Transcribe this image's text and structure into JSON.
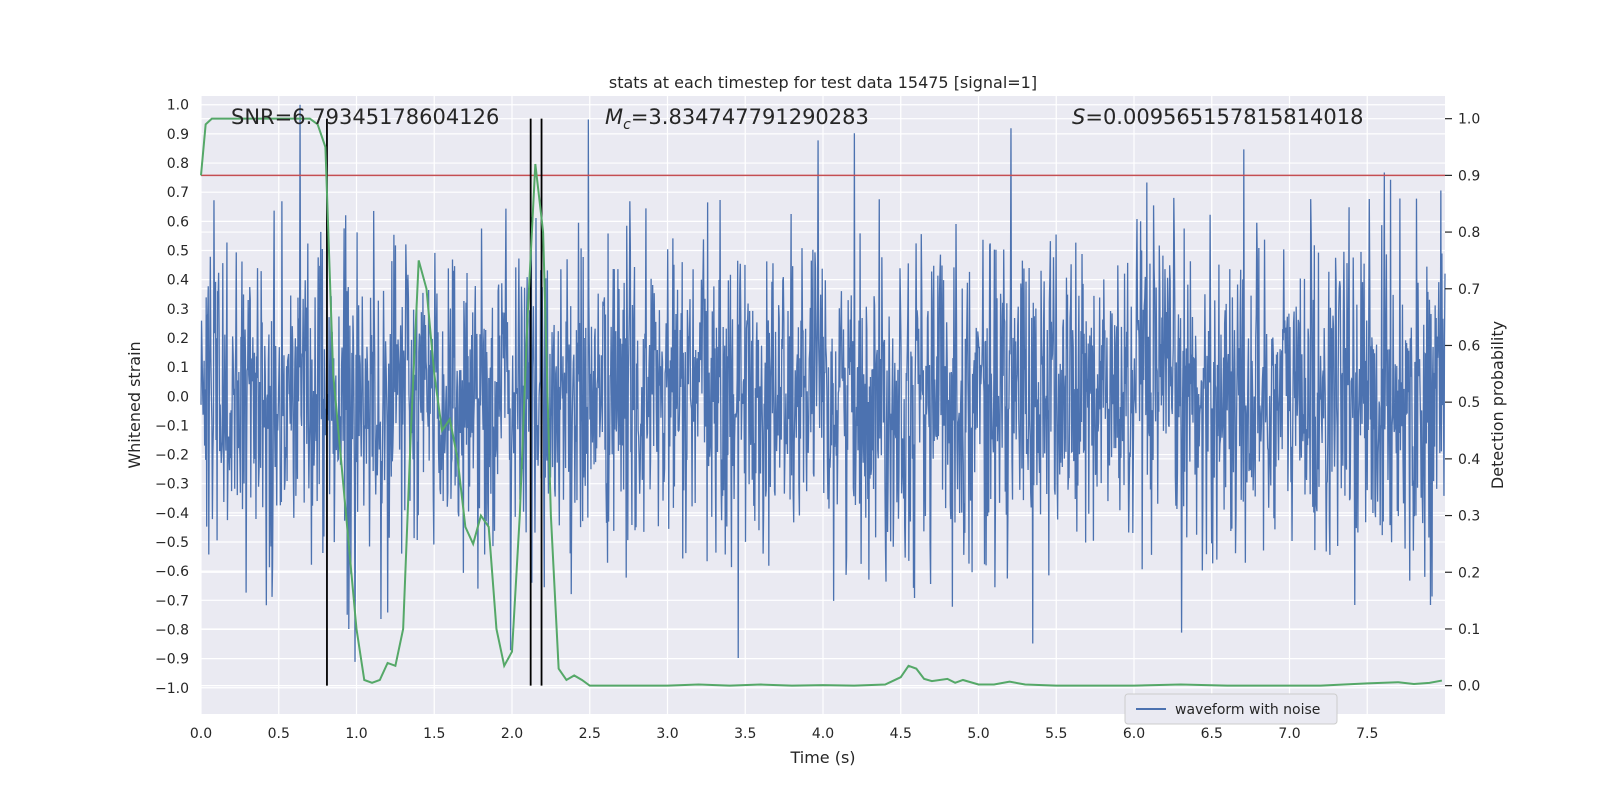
{
  "chart_data": {
    "type": "line",
    "title": "stats at each timestep for test data 15475 [signal=1]",
    "xlabel": "Time (s)",
    "ylabel_left": "Whitened strain",
    "ylabel_right": "Detection probability",
    "xlim": [
      0.0,
      8.0
    ],
    "ylim_left": [
      -1.09,
      1.03
    ],
    "ylim_right": [
      -0.05,
      1.04
    ],
    "x_ticks": [
      "0.0",
      "0.5",
      "1.0",
      "1.5",
      "2.0",
      "2.5",
      "3.0",
      "3.5",
      "4.0",
      "4.5",
      "5.0",
      "5.5",
      "6.0",
      "6.5",
      "7.0",
      "7.5"
    ],
    "x_tick_values": [
      0.0,
      0.5,
      1.0,
      1.5,
      2.0,
      2.5,
      3.0,
      3.5,
      4.0,
      4.5,
      5.0,
      5.5,
      6.0,
      6.5,
      7.0,
      7.5
    ],
    "y_left_ticks": [
      "1.0",
      "0.9",
      "0.8",
      "0.7",
      "0.6",
      "0.5",
      "0.4",
      "0.3",
      "0.2",
      "0.1",
      "0.0",
      "−0.1",
      "−0.2",
      "−0.3",
      "−0.4",
      "−0.5",
      "−0.6",
      "−0.7",
      "−0.8",
      "−0.9",
      "−1.0"
    ],
    "y_left_tick_values": [
      1.0,
      0.9,
      0.8,
      0.7,
      0.6,
      0.5,
      0.4,
      0.3,
      0.2,
      0.1,
      0.0,
      -0.1,
      -0.2,
      -0.3,
      -0.4,
      -0.5,
      -0.6,
      -0.7,
      -0.8,
      -0.9,
      -1.0
    ],
    "y_right_ticks": [
      "1.0",
      "0.9",
      "0.8",
      "0.7",
      "0.6",
      "0.5",
      "0.4",
      "0.3",
      "0.2",
      "0.1",
      "0.0"
    ],
    "y_right_tick_values": [
      1.0,
      0.9,
      0.8,
      0.7,
      0.6,
      0.5,
      0.4,
      0.3,
      0.2,
      0.1,
      0.0
    ],
    "annotations": {
      "snr": "SNR=6.79345178604126",
      "mc_symbol": "M",
      "mc_sub": "c",
      "mc_value": "=3.834747791290283",
      "s_symbol": "S",
      "s_value": "=0.009565157815814018"
    },
    "threshold": 0.9,
    "vlines": [
      0.81,
      2.12,
      2.19
    ],
    "waveform": {
      "name": "waveform with noise",
      "n_samples": 2400,
      "noise_std": 0.27
    },
    "probability": {
      "x": [
        0.0,
        0.03,
        0.07,
        0.13,
        0.2,
        0.3,
        0.4,
        0.5,
        0.6,
        0.7,
        0.75,
        0.8,
        0.85,
        0.9,
        0.95,
        1.0,
        1.05,
        1.1,
        1.15,
        1.2,
        1.25,
        1.3,
        1.35,
        1.4,
        1.45,
        1.5,
        1.55,
        1.6,
        1.65,
        1.7,
        1.75,
        1.8,
        1.85,
        1.9,
        1.95,
        2.0,
        2.05,
        2.1,
        2.15,
        2.2,
        2.25,
        2.3,
        2.35,
        2.4,
        2.45,
        2.5,
        2.6,
        2.8,
        3.0,
        3.2,
        3.4,
        3.6,
        3.8,
        4.0,
        4.2,
        4.4,
        4.5,
        4.55,
        4.6,
        4.65,
        4.7,
        4.8,
        4.85,
        4.9,
        5.0,
        5.1,
        5.2,
        5.3,
        5.5,
        5.7,
        6.0,
        6.3,
        6.6,
        6.9,
        7.2,
        7.5,
        7.7,
        7.8,
        7.9,
        7.98
      ],
      "values": [
        0.9,
        0.99,
        1.0,
        1.0,
        1.0,
        1.0,
        1.0,
        1.0,
        1.0,
        1.0,
        0.99,
        0.95,
        0.55,
        0.4,
        0.25,
        0.1,
        0.01,
        0.005,
        0.01,
        0.04,
        0.035,
        0.1,
        0.45,
        0.75,
        0.7,
        0.55,
        0.45,
        0.47,
        0.4,
        0.28,
        0.25,
        0.3,
        0.28,
        0.1,
        0.035,
        0.06,
        0.3,
        0.65,
        0.92,
        0.8,
        0.3,
        0.03,
        0.01,
        0.018,
        0.01,
        0.0,
        0.0,
        0.0,
        0.0,
        0.002,
        0.0,
        0.002,
        0.0,
        0.001,
        0.0,
        0.002,
        0.015,
        0.035,
        0.03,
        0.012,
        0.008,
        0.012,
        0.005,
        0.01,
        0.002,
        0.002,
        0.007,
        0.002,
        0.0,
        0.0,
        0.0,
        0.002,
        0.0,
        0.0,
        0.0,
        0.004,
        0.006,
        0.003,
        0.005,
        0.009
      ]
    },
    "legend_position": "lower-right",
    "grid": true,
    "colors": {
      "background": "#eaeaf2",
      "grid": "#ffffff",
      "waveform": "#4c72b0",
      "probability": "#55a868",
      "threshold": "#c44e52",
      "vline": "#000000"
    }
  }
}
